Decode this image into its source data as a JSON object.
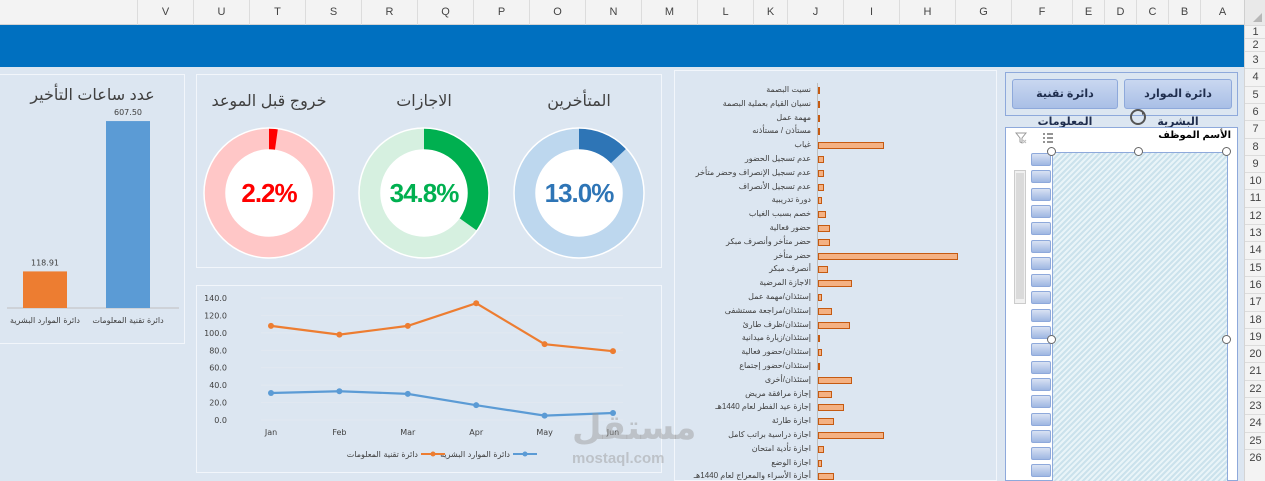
{
  "columns": [
    "A",
    "B",
    "C",
    "D",
    "E",
    "F",
    "G",
    "H",
    "I",
    "J",
    "K",
    "L",
    "M",
    "N",
    "O",
    "P",
    "Q",
    "R",
    "S",
    "T",
    "U",
    "V"
  ],
  "rows": [
    "1",
    "2",
    "3",
    "4",
    "5",
    "6",
    "7",
    "8",
    "9",
    "10",
    "11",
    "12",
    "13",
    "14",
    "15",
    "16",
    "17",
    "18",
    "19",
    "20",
    "21",
    "22",
    "23",
    "24",
    "25",
    "26"
  ],
  "delay_hours": {
    "title": "عدد ساعات التأخير",
    "chart_data": {
      "type": "bar",
      "categories": [
        "دائرة تقنية المعلومات",
        "دائرة الموارد البشرية"
      ],
      "values": [
        607.5,
        118.91
      ],
      "value_labels": [
        "607.50",
        "118.91"
      ],
      "colors": [
        "#5b9bd5",
        "#ed7d31"
      ]
    }
  },
  "donuts": [
    {
      "title": "المتأخرين",
      "value_label": "13.0%",
      "value": 13.0,
      "color": "#2e75b6",
      "rest_color": "#bdd7ee",
      "text_color": "#2e75b6"
    },
    {
      "title": "الاجازات",
      "value_label": "34.8%",
      "value": 34.8,
      "color": "#00b050",
      "rest_color": "#d6f0e0",
      "text_color": "#00b050"
    },
    {
      "title": "خروج قبل الموعد",
      "value_label": "2.2%",
      "value": 2.2,
      "color": "#ff0000",
      "rest_color": "#ffc7c7",
      "text_color": "#ff0000"
    }
  ],
  "line_chart": {
    "chart_data": {
      "type": "line",
      "x": [
        "Jan",
        "Feb",
        "Mar",
        "Apr",
        "May",
        "Jun"
      ],
      "ylim": [
        0,
        140
      ],
      "yticks": [
        "0.0",
        "20.0",
        "40.0",
        "60.0",
        "80.0",
        "100.0",
        "120.0",
        "140.0"
      ],
      "series": [
        {
          "name": "دائرة الموارد البشرية",
          "values": [
            31,
            33,
            30,
            17,
            5,
            8
          ],
          "color": "#5b9bd5"
        },
        {
          "name": "دائرة تقنية المعلومات",
          "values": [
            108,
            98,
            108,
            134,
            87,
            79
          ],
          "color": "#ed7d31"
        }
      ]
    }
  },
  "reasons": {
    "chart_data": {
      "type": "bar",
      "orientation": "horizontal",
      "categories": [
        "نسيت البصمة",
        "نسيان القيام بعملية البصمة",
        "مهمة عمل",
        "مستأذن / مستأذنه",
        "غياب",
        "عدم تسجيل الحضور",
        "عدم تسجيل الإنصراف وحضر متأخر",
        "عدم تسجيل الأنصراف",
        "دورة تدريبية",
        "خصم بسبب الغياب",
        "حضور فعالية",
        "حضر متأخر وأنصرف مبكر",
        "حضر متأخر",
        "أنصرف مبكر",
        "الاجازة المرضية",
        "إستئذان/مهمة عمل",
        "إستئذان/مراجعة مستشفى",
        "إستئذان/ظرف طارئ",
        "إستئذان/زيارة ميدانية",
        "إستئذان/حضور فعالية",
        "إستئذان/حضور إجتماع",
        "إستئذان/أخرى",
        "إجازة مرافقة مريض",
        "إجازة عيد الفطر لعام 1440هـ",
        "اجازة طارئة",
        "اجازة دراسية براتب كامل",
        "اجازة تأدية امتحان",
        "اجازة الوضع",
        "أجازة الأسراء والمعراج لعام 1440هـ"
      ],
      "values": [
        1,
        1,
        1,
        1,
        33,
        3,
        3,
        3,
        2,
        4,
        6,
        6,
        70,
        5,
        17,
        2,
        7,
        16,
        0.5,
        2,
        0.5,
        17,
        7,
        13,
        8,
        33,
        3,
        2,
        8
      ],
      "color": "#f4b183"
    }
  },
  "slicer_dept": {
    "items": [
      "دائرة الموارد البشرية",
      "دائرة تقنية المعلومات"
    ]
  },
  "slicer_emp": {
    "title": "الأسم الموظف",
    "multiselect_icon": "multi-select-icon",
    "clear_icon": "clear-filter-icon"
  },
  "watermark": {
    "logo": "مستقل",
    "url": "mostaql.com"
  }
}
